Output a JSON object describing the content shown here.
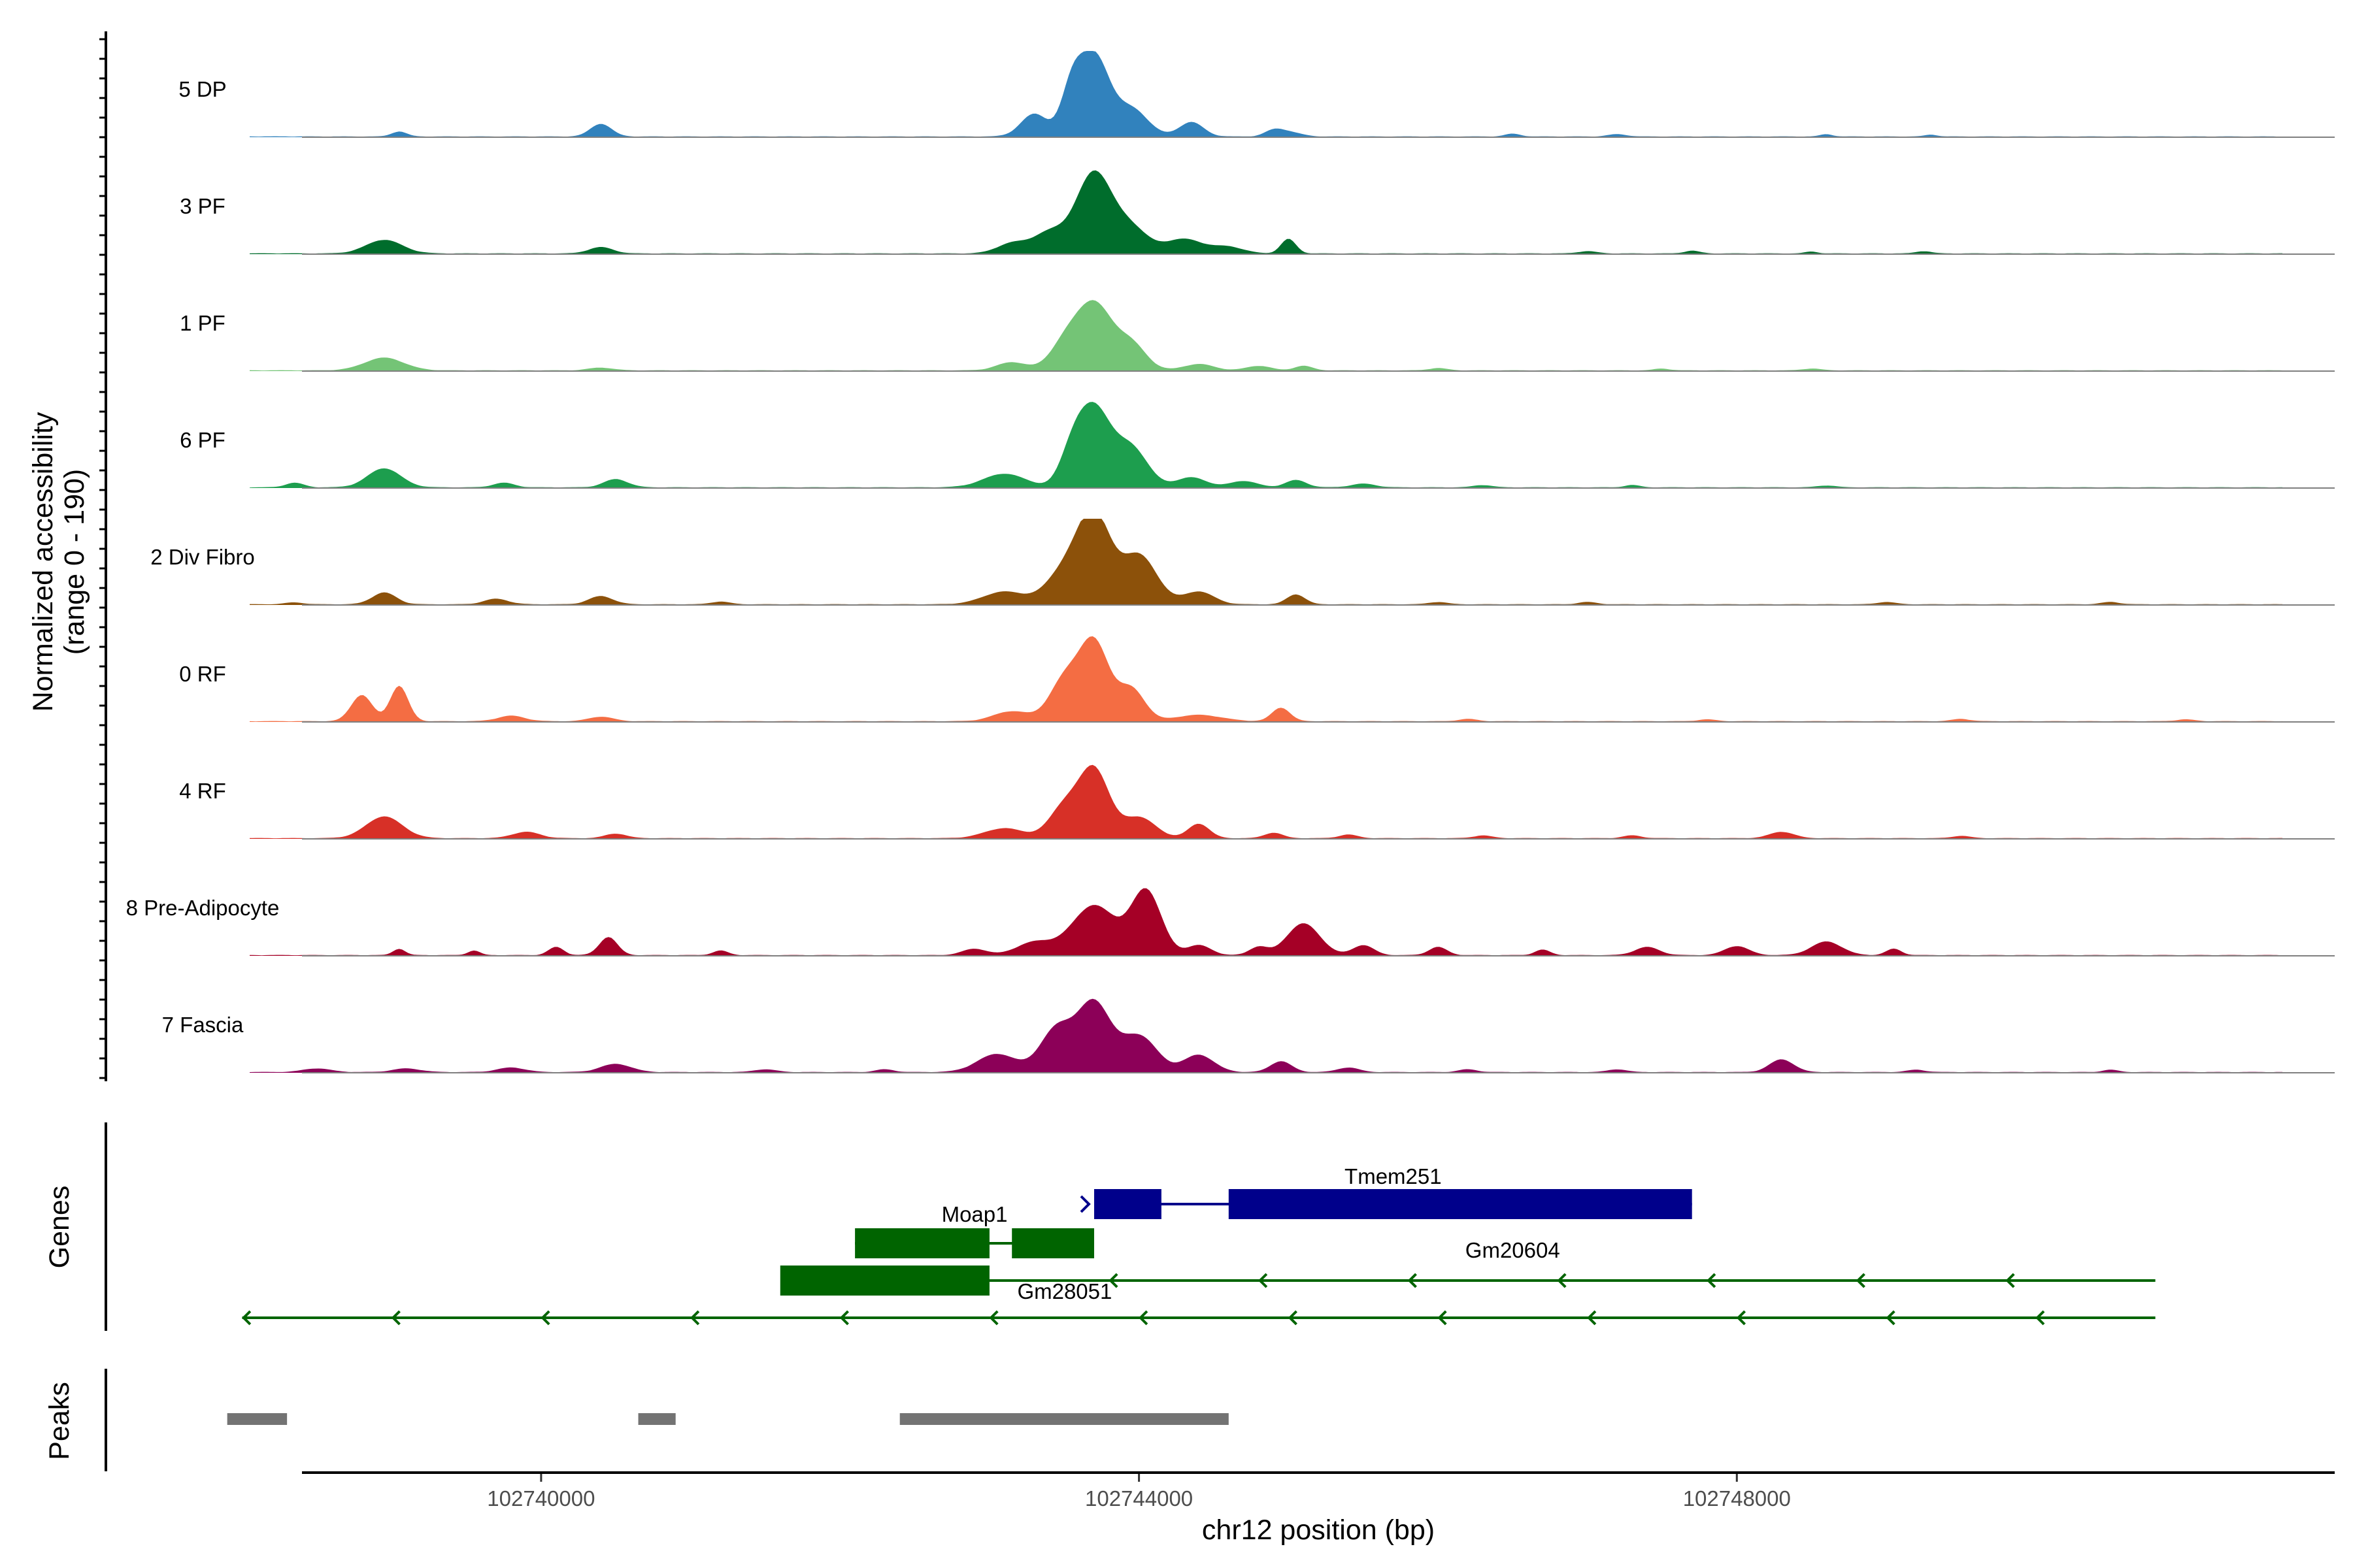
{
  "chart_data": {
    "type": "area",
    "chromosome": "chr12",
    "xlabel": "chr12 position (bp)",
    "xlim": [
      102738400,
      102752000
    ],
    "xticks": [
      102740000,
      102744000,
      102748000
    ],
    "xtick_labels": [
      "102740000",
      "102744000",
      "102748000"
    ],
    "y_title_line1": "Normalized accessibility",
    "y_title_line2": "(range 0 - 190)",
    "ylim": [
      0,
      190
    ],
    "genes_title": "Genes",
    "peaks_title": "Peaks",
    "tracks": [
      {
        "name": "5 DP",
        "color": "#3182bd",
        "peaks": [
          [
            102739050,
            11,
            50
          ],
          [
            102740400,
            28,
            70
          ],
          [
            102743300,
            50,
            90
          ],
          [
            102743550,
            95,
            70
          ],
          [
            102743700,
            175,
            100
          ],
          [
            102743950,
            60,
            110
          ],
          [
            102744350,
            32,
            80
          ],
          [
            102744900,
            12,
            60
          ],
          [
            102745000,
            10,
            80
          ],
          [
            102746500,
            6,
            50
          ],
          [
            102747200,
            5,
            60
          ],
          [
            102748600,
            5,
            40
          ],
          [
            102749300,
            4,
            40
          ]
        ]
      },
      {
        "name": "3 PF",
        "color": "#006d2c",
        "peaks": [
          [
            102738950,
            30,
            120
          ],
          [
            102740400,
            14,
            80
          ],
          [
            102743150,
            22,
            100
          ],
          [
            102743400,
            45,
            110
          ],
          [
            102743700,
            178,
            120
          ],
          [
            102743950,
            52,
            110
          ],
          [
            102744300,
            32,
            130
          ],
          [
            102744600,
            14,
            100
          ],
          [
            102745000,
            32,
            50
          ],
          [
            102747000,
            5,
            60
          ],
          [
            102747700,
            6,
            50
          ],
          [
            102748500,
            4,
            40
          ],
          [
            102749250,
            5,
            50
          ]
        ]
      },
      {
        "name": "1 PF",
        "color": "#74c476",
        "peaks": [
          [
            102738950,
            28,
            130
          ],
          [
            102740400,
            6,
            80
          ],
          [
            102743150,
            18,
            100
          ],
          [
            102743500,
            52,
            100
          ],
          [
            102743700,
            145,
            120
          ],
          [
            102743950,
            55,
            100
          ],
          [
            102744400,
            14,
            100
          ],
          [
            102744800,
            10,
            80
          ],
          [
            102745100,
            10,
            60
          ],
          [
            102746000,
            5,
            60
          ],
          [
            102747500,
            4,
            50
          ],
          [
            102748500,
            4,
            60
          ]
        ]
      },
      {
        "name": "6 PF",
        "color": "#1d9e4e",
        "peaks": [
          [
            102738350,
            10,
            60
          ],
          [
            102738950,
            42,
            110
          ],
          [
            102739750,
            10,
            70
          ],
          [
            102740500,
            18,
            80
          ],
          [
            102743100,
            30,
            140
          ],
          [
            102743550,
            62,
            80
          ],
          [
            102743700,
            170,
            110
          ],
          [
            102743950,
            85,
            110
          ],
          [
            102744350,
            22,
            100
          ],
          [
            102744700,
            14,
            90
          ],
          [
            102745050,
            16,
            70
          ],
          [
            102745500,
            8,
            80
          ],
          [
            102746300,
            5,
            60
          ],
          [
            102747300,
            5,
            50
          ],
          [
            102748600,
            4,
            60
          ]
        ]
      },
      {
        "name": "2 Div Fibro",
        "color": "#8c510a",
        "peaks": [
          [
            102738350,
            4,
            60
          ],
          [
            102738950,
            26,
            80
          ],
          [
            102739700,
            12,
            80
          ],
          [
            102740400,
            18,
            80
          ],
          [
            102741200,
            6,
            60
          ],
          [
            102743100,
            28,
            140
          ],
          [
            102743500,
            70,
            120
          ],
          [
            102743700,
            190,
            110
          ],
          [
            102744000,
            108,
            120
          ],
          [
            102744400,
            28,
            100
          ],
          [
            102745050,
            22,
            60
          ],
          [
            102746000,
            5,
            60
          ],
          [
            102747000,
            5,
            60
          ],
          [
            102749000,
            5,
            60
          ],
          [
            102750500,
            5,
            60
          ]
        ]
      },
      {
        "name": "0 RF",
        "color": "#f46d43",
        "peaks": [
          [
            102738800,
            58,
            70
          ],
          [
            102739050,
            78,
            60
          ],
          [
            102739800,
            12,
            90
          ],
          [
            102740400,
            10,
            80
          ],
          [
            102743150,
            22,
            120
          ],
          [
            102743500,
            88,
            100
          ],
          [
            102743700,
            172,
            100
          ],
          [
            102743950,
            70,
            90
          ],
          [
            102744400,
            14,
            150
          ],
          [
            102744950,
            30,
            60
          ],
          [
            102746200,
            5,
            60
          ],
          [
            102747800,
            4,
            60
          ],
          [
            102749500,
            5,
            60
          ],
          [
            102751000,
            4,
            60
          ]
        ]
      },
      {
        "name": "4 RF",
        "color": "#d73027",
        "peaks": [
          [
            102738950,
            48,
            120
          ],
          [
            102739900,
            14,
            90
          ],
          [
            102740500,
            10,
            70
          ],
          [
            102743100,
            22,
            130
          ],
          [
            102743500,
            68,
            100
          ],
          [
            102743700,
            150,
            100
          ],
          [
            102744000,
            46,
            110
          ],
          [
            102744400,
            32,
            70
          ],
          [
            102744900,
            12,
            60
          ],
          [
            102745400,
            8,
            60
          ],
          [
            102746300,
            6,
            60
          ],
          [
            102747300,
            6,
            60
          ],
          [
            102748300,
            14,
            80
          ],
          [
            102749500,
            5,
            60
          ]
        ]
      },
      {
        "name": "8 Pre-Adipocyte",
        "color": "#a50026",
        "peaks": [
          [
            102739050,
            14,
            40
          ],
          [
            102739550,
            10,
            40
          ],
          [
            102740100,
            18,
            50
          ],
          [
            102740450,
            40,
            60
          ],
          [
            102741200,
            10,
            50
          ],
          [
            102742900,
            14,
            80
          ],
          [
            102743300,
            28,
            120
          ],
          [
            102743700,
            110,
            150
          ],
          [
            102744050,
            140,
            100
          ],
          [
            102744400,
            22,
            80
          ],
          [
            102744800,
            18,
            60
          ],
          [
            102745100,
            70,
            110
          ],
          [
            102745500,
            22,
            70
          ],
          [
            102746000,
            18,
            60
          ],
          [
            102746700,
            12,
            50
          ],
          [
            102747400,
            18,
            80
          ],
          [
            102748000,
            20,
            80
          ],
          [
            102748600,
            30,
            100
          ],
          [
            102749050,
            14,
            50
          ]
        ]
      },
      {
        "name": "7 Fascia",
        "color": "#8c0058",
        "peaks": [
          [
            102738500,
            8,
            90
          ],
          [
            102739100,
            8,
            90
          ],
          [
            102739800,
            10,
            90
          ],
          [
            102740500,
            18,
            100
          ],
          [
            102741500,
            6,
            70
          ],
          [
            102742300,
            6,
            60
          ],
          [
            102743050,
            40,
            130
          ],
          [
            102743450,
            95,
            110
          ],
          [
            102743700,
            150,
            110
          ],
          [
            102744000,
            80,
            120
          ],
          [
            102744400,
            38,
            100
          ],
          [
            102744950,
            24,
            70
          ],
          [
            102745400,
            10,
            70
          ],
          [
            102746200,
            6,
            60
          ],
          [
            102747200,
            6,
            60
          ],
          [
            102748300,
            28,
            80
          ],
          [
            102749200,
            5,
            60
          ],
          [
            102750500,
            5,
            50
          ]
        ]
      }
    ],
    "genes": [
      {
        "name": "Tmem251",
        "strand": "+",
        "color": "#00008b",
        "start": 102743700,
        "end": 102747700,
        "exons": [
          [
            102743700,
            102744150
          ],
          [
            102744600,
            102747700
          ]
        ]
      },
      {
        "name": "Moap1",
        "strand": "-",
        "color": "#006400",
        "start": 102742100,
        "end": 102743700,
        "exons": [
          [
            102742100,
            102743000
          ],
          [
            102743150,
            102743700
          ]
        ]
      },
      {
        "name": "Gm28051",
        "strand": "-",
        "color": "#006400",
        "start": 102741600,
        "end": 102743000,
        "exons": [
          [
            102741600,
            102743000
          ]
        ]
      },
      {
        "name": "Gm20604",
        "strand": "-",
        "color": "#006400",
        "start": 102742800,
        "end": 102750800,
        "exons": []
      },
      {
        "name": "",
        "strand": "-",
        "color": "#006400",
        "start": 102738000,
        "end": 102750800,
        "exons": []
      }
    ],
    "peaks": [
      [
        102737900,
        102738300
      ],
      [
        102740650,
        102740900
      ],
      [
        102742400,
        102744600
      ]
    ]
  }
}
